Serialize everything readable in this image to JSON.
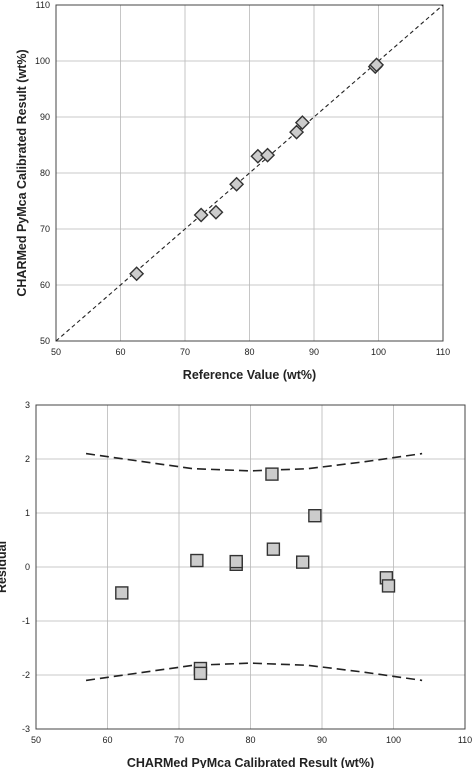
{
  "chart_data": [
    {
      "type": "scatter",
      "title": "",
      "xlabel": "Reference Value (wt%)",
      "ylabel": "CHARMed PyMca Calibrated Result (wt%)",
      "xlim": [
        50,
        110
      ],
      "ylim": [
        50,
        110
      ],
      "xticks": [
        "50",
        "60",
        "70",
        "80",
        "90",
        "100",
        "110"
      ],
      "yticks": [
        "50",
        "60",
        "70",
        "80",
        "90",
        "100",
        "110"
      ],
      "grid": true,
      "marker": "diamond",
      "marker_color": "#cccccc",
      "reference_line": {
        "x": [
          50,
          110
        ],
        "y": [
          50,
          110
        ],
        "style": "dashed"
      },
      "series": [
        {
          "points": [
            {
              "x": 62.5,
              "y": 62.0
            },
            {
              "x": 72.5,
              "y": 72.5
            },
            {
              "x": 74.8,
              "y": 73.0
            },
            {
              "x": 78.0,
              "y": 78.0
            },
            {
              "x": 81.3,
              "y": 83.0
            },
            {
              "x": 82.8,
              "y": 83.2
            },
            {
              "x": 87.3,
              "y": 87.3
            },
            {
              "x": 88.2,
              "y": 89.0
            },
            {
              "x": 99.5,
              "y": 99.0
            },
            {
              "x": 99.7,
              "y": 99.3
            }
          ]
        }
      ]
    },
    {
      "type": "scatter",
      "title": "",
      "xlabel": "CHARMed PyMca Calibrated Result (wt%)",
      "ylabel": "Residual",
      "xlim": [
        50,
        110
      ],
      "ylim": [
        -3,
        3
      ],
      "xticks": [
        "50",
        "60",
        "70",
        "80",
        "90",
        "100",
        "110"
      ],
      "yticks": [
        "-3",
        "-2",
        "-1",
        "0",
        "1",
        "2",
        "3"
      ],
      "grid": true,
      "marker": "square",
      "marker_color": "#cccccc",
      "confidence_bands": {
        "style": "dashed",
        "upper": {
          "x": [
            57,
            65,
            72,
            80,
            88,
            96,
            104
          ],
          "y": [
            2.1,
            1.95,
            1.82,
            1.78,
            1.82,
            1.95,
            2.1
          ]
        },
        "lower": {
          "x": [
            57,
            65,
            72,
            80,
            88,
            96,
            104
          ],
          "y": [
            -2.1,
            -1.95,
            -1.82,
            -1.78,
            -1.82,
            -1.95,
            -2.1
          ]
        }
      },
      "series": [
        {
          "points": [
            {
              "x": 62.0,
              "y": -0.48
            },
            {
              "x": 72.5,
              "y": 0.12
            },
            {
              "x": 73.0,
              "y": -1.88
            },
            {
              "x": 73.0,
              "y": -1.97
            },
            {
              "x": 78.0,
              "y": 0.05
            },
            {
              "x": 78.0,
              "y": 0.1
            },
            {
              "x": 83.0,
              "y": 1.72
            },
            {
              "x": 83.2,
              "y": 0.33
            },
            {
              "x": 87.3,
              "y": 0.09
            },
            {
              "x": 89.0,
              "y": 0.95
            },
            {
              "x": 99.0,
              "y": -0.2
            },
            {
              "x": 99.3,
              "y": -0.35
            }
          ]
        }
      ]
    }
  ]
}
